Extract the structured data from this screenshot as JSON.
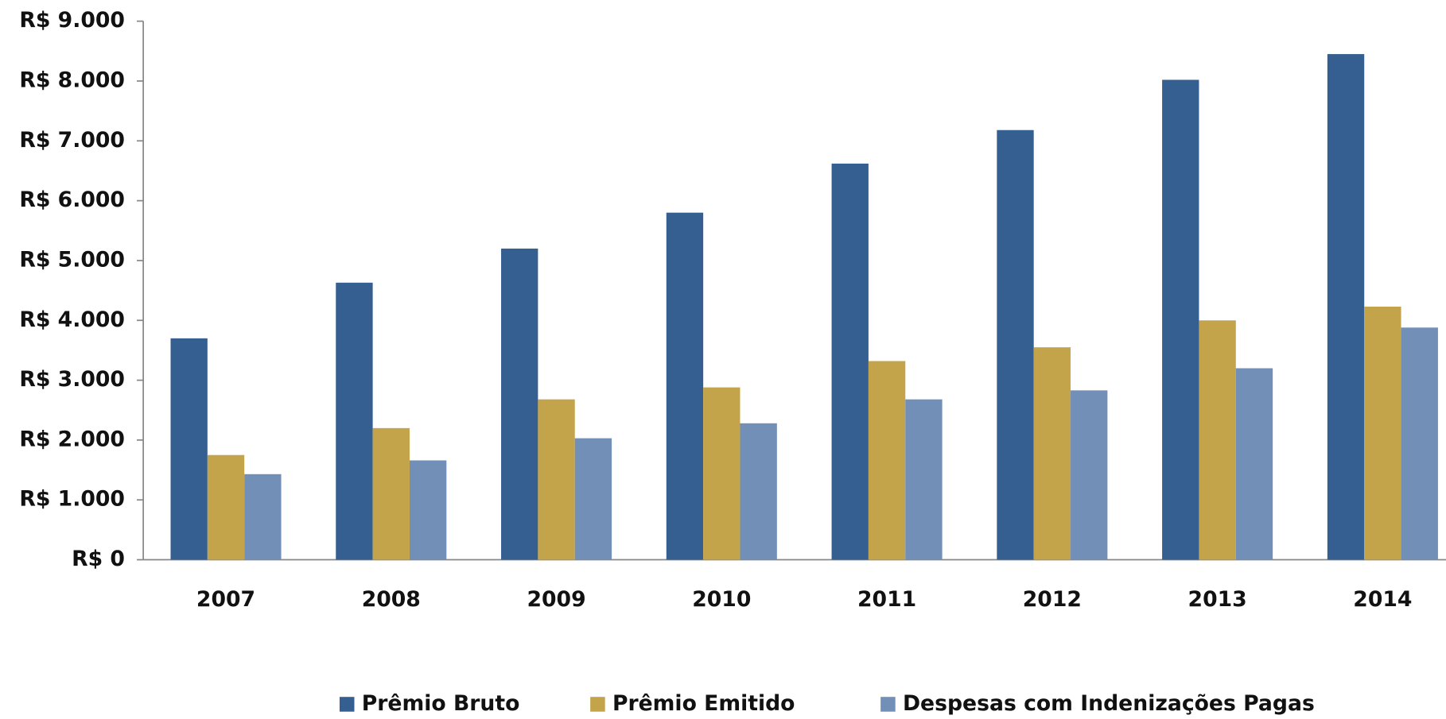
{
  "chart_data": {
    "type": "bar",
    "categories": [
      "2007",
      "2008",
      "2009",
      "2010",
      "2011",
      "2012",
      "2013",
      "2014"
    ],
    "series": [
      {
        "name": "Prêmio Bruto",
        "color": "#365f91",
        "values": [
          3700,
          4630,
          5200,
          5800,
          6620,
          7180,
          8020,
          8450
        ]
      },
      {
        "name": "Prêmio Emitido",
        "color": "#c4a44a",
        "values": [
          1750,
          2200,
          2680,
          2880,
          3320,
          3550,
          4000,
          4230
        ]
      },
      {
        "name": "Despesas com Indenizações Pagas",
        "color": "#728fb7",
        "values": [
          1430,
          1660,
          2030,
          2280,
          2680,
          2830,
          3200,
          3880
        ]
      }
    ],
    "ylim": [
      0,
      9000
    ],
    "yticks": [
      {
        "value": 0,
        "label": "R$ 0"
      },
      {
        "value": 1000,
        "label": "R$ 1.000"
      },
      {
        "value": 2000,
        "label": "R$ 2.000"
      },
      {
        "value": 3000,
        "label": "R$ 3.000"
      },
      {
        "value": 4000,
        "label": "R$ 4.000"
      },
      {
        "value": 5000,
        "label": "R$ 5.000"
      },
      {
        "value": 6000,
        "label": "R$ 6.000"
      },
      {
        "value": 7000,
        "label": "R$ 7.000"
      },
      {
        "value": 8000,
        "label": "R$ 8.000"
      },
      {
        "value": 9000,
        "label": "R$ 9.000"
      }
    ],
    "legend": "bottom"
  }
}
